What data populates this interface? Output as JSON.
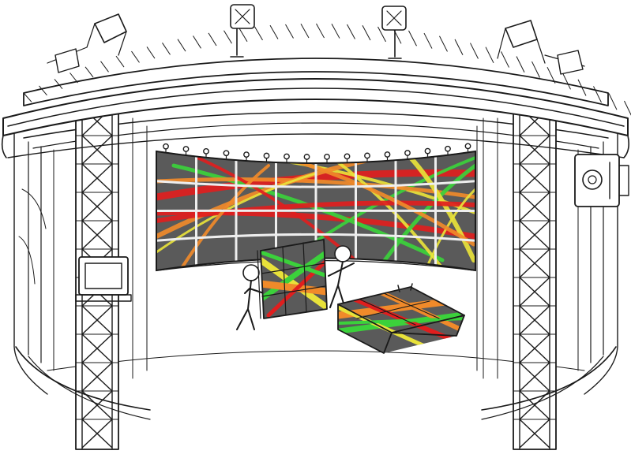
{
  "colors": {
    "ink": "#1a1a1a",
    "paper": "#ffffff",
    "screen": "#5a5a5a",
    "screen_dark": "#4a4a4a",
    "frame": "#f4f4f4",
    "stripe_red": "#e01e1e",
    "stripe_green": "#3bd13b",
    "stripe_yellow": "#e8e23a",
    "stripe_orange": "#f08a2a"
  },
  "scene": {
    "description_icons": [
      "truss-ring-icon",
      "stage-light-icon",
      "curved-display-wall-icon",
      "tiled-display-panel-icon",
      "interactive-table-icon",
      "person-figure-icon",
      "kiosk-monitor-icon",
      "camera-tracker-icon"
    ]
  }
}
